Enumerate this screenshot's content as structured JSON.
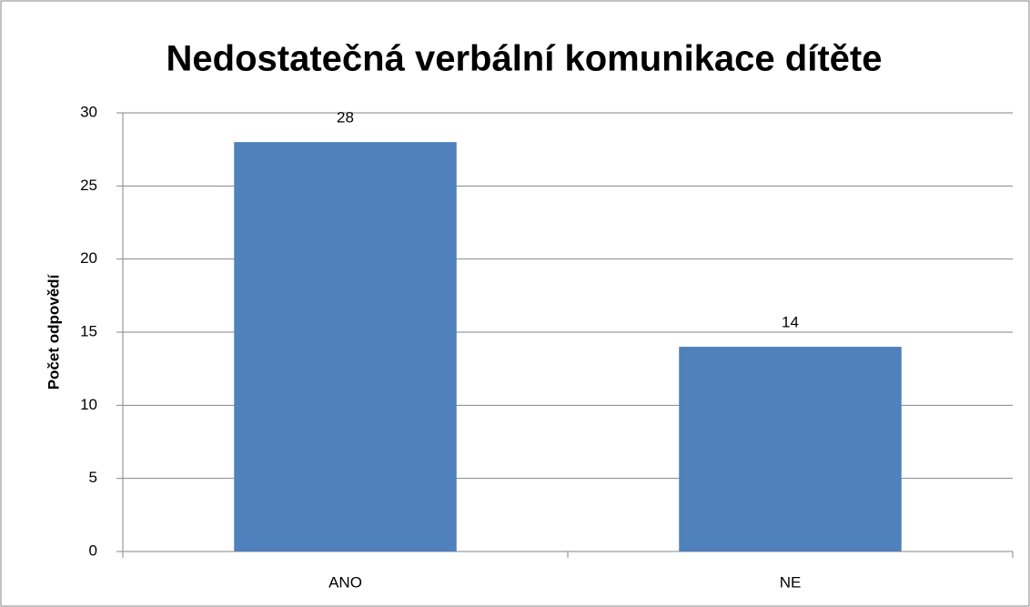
{
  "chart_data": {
    "type": "bar",
    "title": "Nedostatečná verbální komunikace dítěte",
    "ylabel": "Počet odpovědí",
    "categories": [
      "ANO",
      "NE"
    ],
    "values": [
      28,
      14
    ],
    "color": "#4f81bd",
    "ylim": [
      0,
      30
    ],
    "yticks": [
      0,
      5,
      10,
      15,
      20,
      25,
      30
    ],
    "grid": true
  }
}
